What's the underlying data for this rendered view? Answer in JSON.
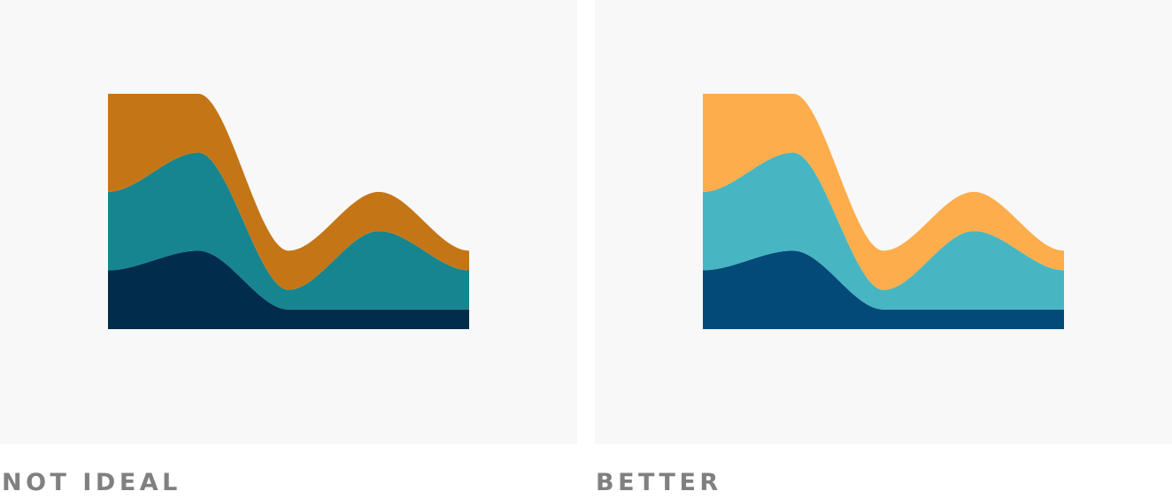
{
  "captions": {
    "left": "NOT IDEAL",
    "right": "BETTER"
  },
  "chart_data": [
    {
      "type": "area",
      "stacked": true,
      "caption": "NOT IDEAL",
      "x": [
        0,
        1,
        2,
        3,
        4
      ],
      "ylim": [
        0,
        12
      ],
      "series": [
        {
          "values": [
            3,
            4,
            1,
            1,
            1
          ],
          "color": "#022c4b"
        },
        {
          "values": [
            4,
            5,
            1,
            4,
            2
          ],
          "color": "#16858f"
        },
        {
          "values": [
            5,
            3,
            2,
            2,
            1
          ],
          "color": "#c47617"
        }
      ],
      "grid": false,
      "legend": "none"
    },
    {
      "type": "area",
      "stacked": true,
      "caption": "BETTER",
      "x": [
        0,
        1,
        2,
        3,
        4
      ],
      "ylim": [
        0,
        12
      ],
      "series": [
        {
          "values": [
            3,
            4,
            1,
            1,
            1
          ],
          "color": "#044a79"
        },
        {
          "values": [
            4,
            5,
            1,
            4,
            2
          ],
          "color": "#47b6c2"
        },
        {
          "values": [
            5,
            3,
            2,
            2,
            1
          ],
          "color": "#fead4c"
        }
      ],
      "grid": false,
      "legend": "none"
    }
  ]
}
